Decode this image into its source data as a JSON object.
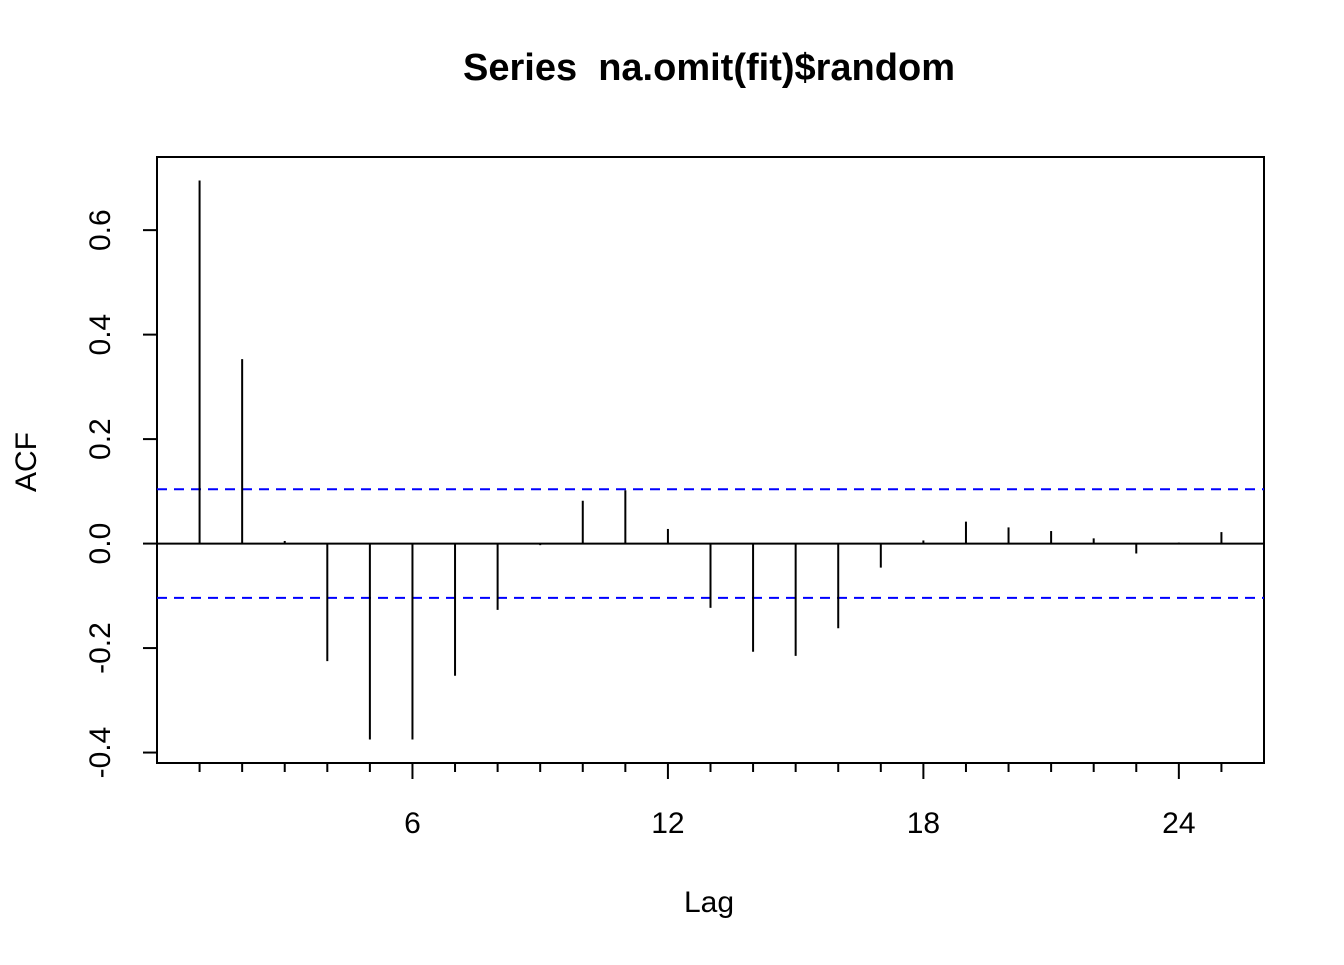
{
  "chart_data": {
    "type": "bar",
    "title": "Series  na.omit(fit)$random",
    "xlabel": "Lag",
    "ylabel": "ACF",
    "xlim": [
      0,
      26
    ],
    "ylim": [
      -0.42,
      0.74
    ],
    "x_ticks": [
      6,
      12,
      18,
      24
    ],
    "y_ticks": [
      -0.4,
      -0.2,
      0.0,
      0.2,
      0.4,
      0.6
    ],
    "x_tick_labels": [
      "6",
      "12",
      "18",
      "24"
    ],
    "y_tick_labels": [
      "-0.4",
      "-0.2",
      "0.0",
      "0.2",
      "0.4",
      "0.6"
    ],
    "confidence_bound": 0.104,
    "line_color": "#000000",
    "ci_color": "#0000FF",
    "x": [
      1,
      2,
      3,
      4,
      5,
      6,
      7,
      8,
      9,
      10,
      11,
      12,
      13,
      14,
      15,
      16,
      17,
      18,
      19,
      20,
      21,
      22,
      23,
      24,
      25
    ],
    "values": [
      0.695,
      0.353,
      0.005,
      -0.225,
      -0.375,
      -0.375,
      -0.253,
      -0.127,
      -0.003,
      0.082,
      0.102,
      0.028,
      -0.123,
      -0.207,
      -0.215,
      -0.162,
      -0.046,
      0.006,
      0.042,
      0.031,
      0.024,
      0.01,
      -0.019,
      0.002,
      0.022
    ]
  }
}
